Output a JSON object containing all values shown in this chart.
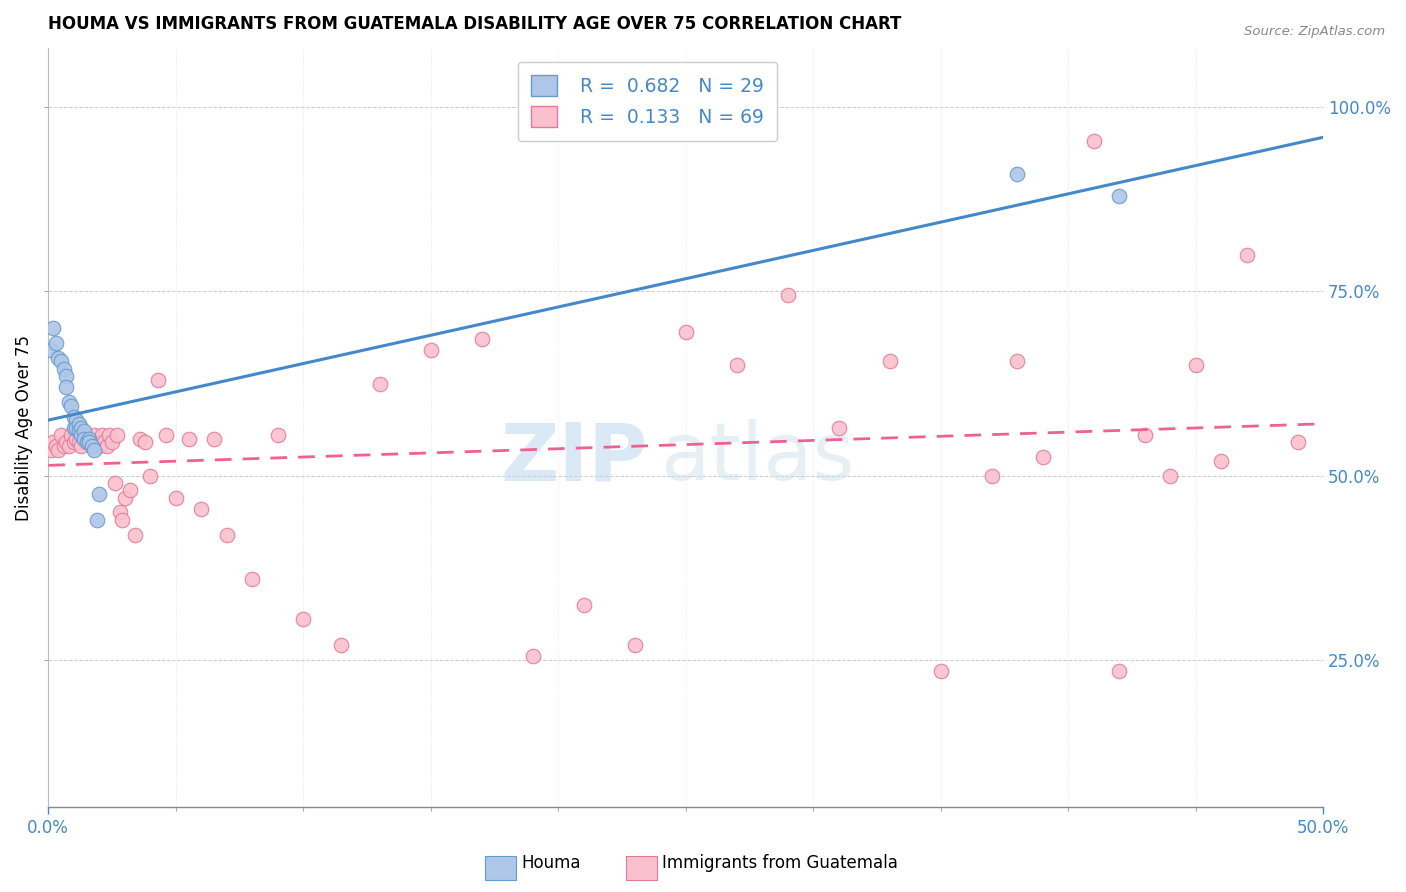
{
  "title": "HOUMA VS IMMIGRANTS FROM GUATEMALA DISABILITY AGE OVER 75 CORRELATION CHART",
  "source": "Source: ZipAtlas.com",
  "ylabel": "Disability Age Over 75",
  "right_ytick_vals": [
    1.0,
    0.75,
    0.5,
    0.25
  ],
  "right_ytick_labels": [
    "100.0%",
    "75.0%",
    "50.0%",
    "25.0%"
  ],
  "xmin": 0.0,
  "xmax": 0.5,
  "ymin": 0.05,
  "ymax": 1.08,
  "houma_color": "#aec6e8",
  "houma_edge_color": "#6699cc",
  "guatemala_color": "#f9c0ce",
  "guatemala_edge_color": "#e87898",
  "houma_line_color": "#4488cc",
  "guatemala_line_color": "#f06090",
  "legend_R_houma": "0.682",
  "legend_N_houma": "29",
  "legend_R_guatemala": "0.133",
  "legend_N_guatemala": "69",
  "watermark_zip": "ZIP",
  "watermark_atlas": "atlas",
  "houma_x": [
    0.001,
    0.002,
    0.003,
    0.004,
    0.005,
    0.006,
    0.007,
    0.007,
    0.008,
    0.009,
    0.01,
    0.01,
    0.011,
    0.011,
    0.012,
    0.012,
    0.013,
    0.013,
    0.014,
    0.014,
    0.015,
    0.016,
    0.016,
    0.017,
    0.018,
    0.019,
    0.02,
    0.38,
    0.42
  ],
  "houma_y": [
    0.67,
    0.7,
    0.68,
    0.66,
    0.655,
    0.645,
    0.635,
    0.62,
    0.6,
    0.595,
    0.58,
    0.565,
    0.575,
    0.565,
    0.57,
    0.56,
    0.565,
    0.555,
    0.56,
    0.55,
    0.545,
    0.55,
    0.545,
    0.54,
    0.535,
    0.44,
    0.475,
    0.91,
    0.88
  ],
  "guatemala_x": [
    0.001,
    0.002,
    0.003,
    0.004,
    0.005,
    0.006,
    0.007,
    0.008,
    0.009,
    0.01,
    0.011,
    0.012,
    0.013,
    0.014,
    0.015,
    0.016,
    0.017,
    0.018,
    0.019,
    0.02,
    0.021,
    0.022,
    0.023,
    0.024,
    0.025,
    0.026,
    0.027,
    0.028,
    0.029,
    0.03,
    0.032,
    0.034,
    0.036,
    0.038,
    0.04,
    0.043,
    0.046,
    0.05,
    0.055,
    0.06,
    0.065,
    0.07,
    0.08,
    0.09,
    0.1,
    0.115,
    0.13,
    0.15,
    0.17,
    0.19,
    0.21,
    0.23,
    0.25,
    0.27,
    0.29,
    0.31,
    0.33,
    0.35,
    0.37,
    0.39,
    0.41,
    0.43,
    0.45,
    0.47,
    0.49,
    0.38,
    0.42,
    0.44,
    0.46
  ],
  "guatemala_y": [
    0.535,
    0.545,
    0.54,
    0.535,
    0.555,
    0.54,
    0.545,
    0.54,
    0.555,
    0.545,
    0.55,
    0.545,
    0.54,
    0.555,
    0.545,
    0.55,
    0.545,
    0.555,
    0.545,
    0.54,
    0.555,
    0.545,
    0.54,
    0.555,
    0.545,
    0.49,
    0.555,
    0.45,
    0.44,
    0.47,
    0.48,
    0.42,
    0.55,
    0.545,
    0.5,
    0.63,
    0.555,
    0.47,
    0.55,
    0.455,
    0.55,
    0.42,
    0.36,
    0.555,
    0.305,
    0.27,
    0.625,
    0.67,
    0.685,
    0.255,
    0.325,
    0.27,
    0.695,
    0.65,
    0.745,
    0.565,
    0.655,
    0.235,
    0.5,
    0.525,
    0.955,
    0.555,
    0.65,
    0.8,
    0.545,
    0.655,
    0.235,
    0.5,
    0.52
  ]
}
